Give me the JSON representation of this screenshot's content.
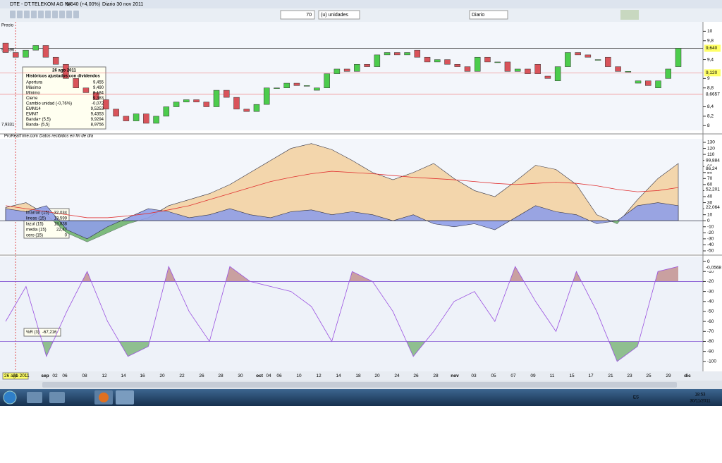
{
  "window": {
    "title": "DTE - DT.TELEKOM AG NA",
    "quote": "9,640 (+4,00%)",
    "period": "Diario  30 nov 2011"
  },
  "toolbar": {
    "units": "70",
    "units_label": "(u) unidades",
    "timeframe": "Diario"
  },
  "price_panel": {
    "label": "Precio",
    "source": "ProRealTime.com",
    "note": "Datos recibidos en fin de día",
    "left_labels": [
      "9,8596",
      "7,9331"
    ],
    "ylim": [
      7.9,
      10.2
    ],
    "yticks": [
      10,
      {
        "value": 9.8,
        "label": "9,8"
      },
      {
        "value": 9.4,
        "label": "9,4"
      },
      9,
      {
        "value": 8.8,
        "label": "8,8"
      },
      {
        "value": 8.4,
        "label": "8,4"
      },
      {
        "value": 8.2,
        "label": "8,2"
      },
      8
    ],
    "badges": [
      {
        "value": 9.64,
        "label": "9,640"
      },
      {
        "value": 9.12,
        "label": "9,120"
      },
      {
        "value": 8.6657,
        "label": "8,6657"
      }
    ],
    "candles": [
      [
        9.75,
        9.55
      ],
      [
        9.55,
        9.45
      ],
      [
        9.45,
        9.6
      ],
      [
        9.6,
        9.7
      ],
      [
        9.7,
        9.45
      ],
      [
        9.45,
        9.3
      ],
      [
        9.3,
        9.0
      ],
      [
        9.0,
        8.8
      ],
      [
        8.8,
        8.7
      ],
      [
        8.7,
        8.55
      ],
      [
        8.55,
        8.35
      ],
      [
        8.35,
        8.2
      ],
      [
        8.2,
        8.1
      ],
      [
        8.1,
        8.25
      ],
      [
        8.25,
        8.05
      ],
      [
        8.05,
        8.2
      ],
      [
        8.2,
        8.4
      ],
      [
        8.4,
        8.5
      ],
      [
        8.5,
        8.55
      ],
      [
        8.55,
        8.5
      ],
      [
        8.5,
        8.4
      ],
      [
        8.4,
        8.75
      ],
      [
        8.75,
        8.6
      ],
      [
        8.6,
        8.35
      ],
      [
        8.35,
        8.3
      ],
      [
        8.3,
        8.45
      ],
      [
        8.45,
        8.8
      ],
      [
        8.8,
        8.8
      ],
      [
        8.8,
        8.9
      ],
      [
        8.9,
        8.85
      ],
      [
        8.85,
        8.85
      ],
      [
        8.75,
        8.8
      ],
      [
        8.8,
        9.1
      ],
      [
        9.1,
        9.2
      ],
      [
        9.2,
        9.15
      ],
      [
        9.15,
        9.3
      ],
      [
        9.3,
        9.25
      ],
      [
        9.25,
        9.5
      ],
      [
        9.5,
        9.55
      ],
      [
        9.55,
        9.5
      ],
      [
        9.5,
        9.55
      ],
      [
        9.6,
        9.45
      ],
      [
        9.45,
        9.35
      ],
      [
        9.35,
        9.4
      ],
      [
        9.4,
        9.3
      ],
      [
        9.3,
        9.25
      ],
      [
        9.25,
        9.15
      ],
      [
        9.15,
        9.45
      ],
      [
        9.45,
        9.35
      ],
      [
        9.35,
        9.35
      ],
      [
        9.35,
        9.15
      ],
      [
        9.15,
        9.2
      ],
      [
        9.2,
        9.1
      ],
      [
        9.3,
        9.1
      ],
      [
        9.05,
        9.0
      ],
      [
        8.95,
        9.25
      ],
      [
        9.25,
        9.55
      ],
      [
        9.55,
        9.5
      ],
      [
        9.5,
        9.45
      ],
      [
        9.4,
        9.4
      ],
      [
        9.45,
        9.25
      ],
      [
        9.25,
        9.15
      ],
      [
        9.15,
        9.15
      ],
      [
        8.9,
        8.95
      ],
      [
        8.95,
        8.85
      ],
      [
        8.8,
        8.95
      ],
      [
        9.0,
        9.2
      ],
      [
        9.25,
        9.64
      ]
    ]
  },
  "tooltip": {
    "date": "26 ago 2011",
    "heading": "Históricos ajustados con dividendos",
    "rows": [
      [
        "Apertura",
        "9,455"
      ],
      [
        "Máximo",
        "9,490"
      ],
      [
        "Mínimo",
        "9,184"
      ],
      [
        "Cierre",
        "9,383"
      ],
      [
        "Cambio unidad (-0,76%)",
        "-0,072"
      ],
      [
        "EMM14",
        "9,5253"
      ],
      [
        "EMM7",
        "9,4353"
      ],
      [
        "Banda+ (5,5)",
        "9,9294"
      ],
      [
        "Banda- (5,5)",
        "8,9756"
      ]
    ]
  },
  "oscillator": {
    "ylim": [
      -50,
      130
    ],
    "yticks": [
      130,
      120,
      110,
      100,
      90,
      80,
      70,
      60,
      50,
      40,
      30,
      20,
      10,
      0,
      -10,
      -20,
      -30,
      -40,
      -50
    ],
    "badges": [
      {
        "value": 99.884,
        "label": "99,884"
      },
      {
        "value": 86.24,
        "label": "86,24"
      },
      {
        "value": 52.201,
        "label": "52,201"
      },
      {
        "value": 22.064,
        "label": "22,064"
      }
    ],
    "series": [
      {
        "name": "lmarron (15)",
        "last": "32,034",
        "color": "#f3d3a3",
        "values": [
          22,
          30,
          10,
          -20,
          -35,
          -20,
          -5,
          5,
          25,
          35,
          45,
          60,
          80,
          100,
          120,
          128,
          118,
          100,
          80,
          68,
          80,
          95,
          70,
          50,
          40,
          65,
          92,
          85,
          60,
          10,
          -5,
          35,
          70,
          95
        ]
      },
      {
        "name": "lazul (15)",
        "last": "18,838",
        "color": "#8f9ee8",
        "values": [
          20,
          15,
          25,
          -15,
          -30,
          -10,
          5,
          20,
          15,
          5,
          10,
          20,
          10,
          5,
          15,
          18,
          10,
          15,
          10,
          0,
          10,
          -5,
          -10,
          -5,
          -15,
          5,
          25,
          15,
          10,
          -5,
          0,
          25,
          30,
          25
        ]
      },
      {
        "name": "media (15)",
        "last": "22,47",
        "color": "#e03030",
        "values": [
          25,
          20,
          15,
          10,
          5,
          5,
          8,
          12,
          18,
          25,
          35,
          45,
          55,
          65,
          72,
          78,
          82,
          80,
          78,
          75,
          72,
          70,
          68,
          65,
          62,
          60,
          62,
          64,
          62,
          58,
          52,
          48,
          50,
          55
        ]
      }
    ],
    "extra_legend": [
      {
        "name": "lineas (15)",
        "last": "13,599",
        "color": "#2a8a2a"
      },
      {
        "name": "cero (15)",
        "last": "0",
        "color": "#000"
      }
    ]
  },
  "williams": {
    "name": "%R (3)",
    "last": "-67,216",
    "ylim": [
      -110,
      5
    ],
    "yticks": [
      0,
      -10,
      -20,
      -30,
      -40,
      -50,
      -60,
      -70,
      -80,
      -90,
      -100
    ],
    "levels": [
      -20,
      -80
    ],
    "badge": {
      "value": -0.0568,
      "label": "-0,0568"
    },
    "values": [
      -60,
      -25,
      -95,
      -50,
      -10,
      -60,
      -95,
      -85,
      -5,
      -50,
      -80,
      -5,
      -20,
      -25,
      -30,
      -45,
      -80,
      -10,
      -20,
      -50,
      -95,
      -70,
      -40,
      -30,
      -60,
      -5,
      -40,
      -70,
      -10,
      -50,
      -100,
      -85,
      -10,
      -5
    ]
  },
  "dates": [
    "26 ago 2011",
    "31",
    "sep",
    "02",
    "06",
    "08",
    "12",
    "14",
    "16",
    "20",
    "22",
    "26",
    "28",
    "30",
    "oct",
    "04",
    "06",
    "10",
    "12",
    "14",
    "18",
    "20",
    "24",
    "26",
    "28",
    "nov",
    "03",
    "05",
    "07",
    "09",
    "11",
    "15",
    "17",
    "21",
    "23",
    "25",
    "29",
    "dic"
  ],
  "taskbar": {
    "lang": "ES",
    "time": "18:53",
    "date": "30/11/2011"
  }
}
